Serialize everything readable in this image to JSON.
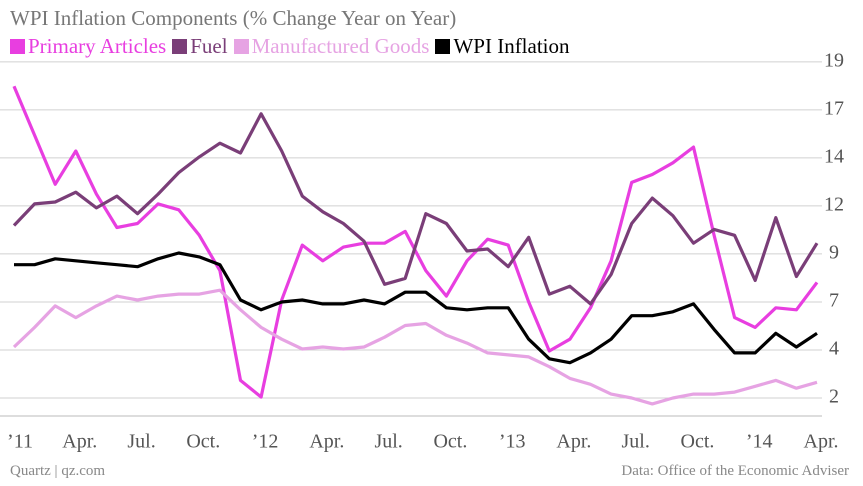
{
  "chart_data": {
    "type": "line",
    "title": "WPI Inflation Components (% Change Year on Year)",
    "source_left": "Quartz | qz.com",
    "source_right": "Data: Office of the Economic Adviser",
    "categories": [
      "’11",
      null,
      null,
      "Apr.",
      null,
      null,
      "Jul.",
      null,
      null,
      "Oct.",
      null,
      null,
      "’12",
      null,
      null,
      "Apr.",
      null,
      null,
      "Jul.",
      null,
      null,
      "Oct.",
      null,
      null,
      "’13",
      null,
      null,
      "Apr.",
      null,
      null,
      "Jul.",
      null,
      null,
      "Oct.",
      null,
      null,
      "’14",
      null,
      null,
      "Apr."
    ],
    "series": [
      {
        "name": "Primary Articles",
        "color": "#e83ee0",
        "values": [
          17.9,
          15.4,
          12.9,
          14.6,
          12.4,
          10.7,
          10.9,
          11.9,
          11.6,
          10.3,
          8.5,
          2.9,
          2.05,
          7.0,
          9.8,
          9.0,
          9.7,
          9.9,
          9.9,
          10.5,
          8.5,
          7.2,
          9.0,
          10.1,
          9.8,
          6.9,
          4.4,
          5.0,
          6.6,
          9.0,
          13.0,
          13.4,
          14.0,
          14.8,
          10.3,
          6.1,
          5.6,
          6.6,
          6.5,
          7.9
        ]
      },
      {
        "name": "Fuel",
        "color": "#7a3e78",
        "values": [
          10.8,
          11.9,
          12.0,
          12.5,
          11.7,
          12.3,
          11.4,
          12.4,
          13.5,
          14.3,
          15.0,
          14.5,
          16.5,
          14.6,
          12.3,
          11.5,
          10.9,
          10.0,
          7.8,
          8.1,
          11.4,
          10.9,
          9.5,
          9.6,
          8.7,
          10.2,
          7.3,
          7.7,
          6.8,
          8.3,
          10.9,
          12.2,
          11.3,
          9.9,
          10.6,
          10.3,
          8.0,
          11.2,
          8.2,
          9.9
        ]
      },
      {
        "name": "Manufactured Goods",
        "color": "#e6a3e3",
        "values": [
          4.6,
          5.6,
          6.7,
          6.1,
          6.7,
          7.2,
          7.0,
          7.2,
          7.3,
          7.3,
          7.5,
          6.5,
          5.6,
          5.0,
          4.5,
          4.6,
          4.5,
          4.6,
          5.1,
          5.7,
          5.8,
          5.2,
          4.8,
          4.3,
          4.2,
          4.1,
          3.6,
          3.0,
          2.7,
          2.2,
          2.0,
          1.7,
          2.0,
          2.2,
          2.2,
          2.3,
          2.6,
          2.9,
          2.5,
          2.8
        ]
      },
      {
        "name": "WPI Inflation",
        "color": "#000000",
        "values": [
          8.8,
          8.8,
          9.1,
          9.0,
          8.9,
          8.8,
          8.7,
          9.1,
          9.4,
          9.2,
          8.8,
          7.0,
          6.5,
          6.9,
          7.0,
          6.8,
          6.8,
          7.0,
          6.8,
          7.4,
          7.4,
          6.6,
          6.5,
          6.6,
          6.6,
          5.0,
          4.0,
          3.8,
          4.3,
          5.0,
          6.2,
          6.2,
          6.4,
          6.8,
          5.5,
          4.3,
          4.3,
          5.3,
          4.6,
          5.3
        ]
      }
    ],
    "ylim": [
      1.2,
      19.6
    ],
    "yticks": [
      {
        "value": 2,
        "label": "2"
      },
      {
        "value": 4.45,
        "label": "4"
      },
      {
        "value": 6.9,
        "label": "7"
      },
      {
        "value": 9.35,
        "label": "9"
      },
      {
        "value": 11.8,
        "label": "12"
      },
      {
        "value": 14.25,
        "label": "14"
      },
      {
        "value": 16.7,
        "label": "17"
      },
      {
        "value": 19.15,
        "label": "19"
      }
    ],
    "grid": true,
    "legend": "top"
  }
}
